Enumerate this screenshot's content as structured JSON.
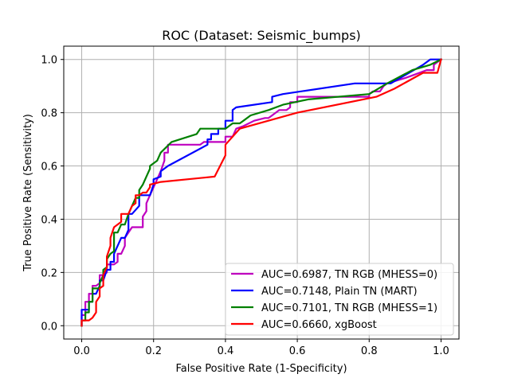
{
  "chart_data": {
    "type": "line",
    "title": "ROC (Dataset: Seismic_bumps)",
    "xlabel": "False Positive Rate (1-Specificity)",
    "ylabel": "True Positive Rate (Sensitivity)",
    "xlim": [
      -0.05,
      1.05
    ],
    "ylim": [
      -0.05,
      1.05
    ],
    "xticks": [
      "0.0",
      "0.2",
      "0.4",
      "0.6",
      "0.8",
      "1.0"
    ],
    "yticks": [
      "0.0",
      "0.2",
      "0.4",
      "0.6",
      "0.8",
      "1.0"
    ],
    "grid": true,
    "legend_position": "lower-right",
    "series": [
      {
        "name": "AUC=0.6987, TN RGB (MHESS=0)",
        "color": "#bf00bf",
        "x": [
          0,
          0,
          0.01,
          0.01,
          0.02,
          0.02,
          0.03,
          0.03,
          0.04,
          0.05,
          0.05,
          0.06,
          0.07,
          0.07,
          0.09,
          0.1,
          0.1,
          0.11,
          0.12,
          0.12,
          0.14,
          0.17,
          0.17,
          0.18,
          0.18,
          0.19,
          0.2,
          0.22,
          0.23,
          0.23,
          0.24,
          0.24,
          0.26,
          0.33,
          0.34,
          0.4,
          0.4,
          0.42,
          0.43,
          0.45,
          0.48,
          0.51,
          0.52,
          0.53,
          0.55,
          0.57,
          0.58,
          0.58,
          0.6,
          0.6,
          0.66,
          0.8,
          0.8,
          0.81,
          0.83,
          0.84,
          0.85,
          0.9,
          0.92,
          0.96,
          0.98,
          0.98,
          1.0
        ],
        "y": [
          0,
          0.04,
          0.04,
          0.09,
          0.09,
          0.12,
          0.12,
          0.15,
          0.15,
          0.16,
          0.19,
          0.19,
          0.2,
          0.23,
          0.23,
          0.24,
          0.27,
          0.27,
          0.3,
          0.33,
          0.37,
          0.37,
          0.41,
          0.43,
          0.46,
          0.49,
          0.52,
          0.58,
          0.62,
          0.65,
          0.65,
          0.68,
          0.68,
          0.68,
          0.69,
          0.69,
          0.71,
          0.71,
          0.74,
          0.75,
          0.77,
          0.78,
          0.78,
          0.79,
          0.81,
          0.81,
          0.82,
          0.84,
          0.84,
          0.86,
          0.86,
          0.86,
          0.87,
          0.88,
          0.88,
          0.9,
          0.91,
          0.93,
          0.94,
          0.96,
          0.96,
          0.98,
          1.0
        ]
      },
      {
        "name": "AUC=0.7148, Plain TN (MART)",
        "color": "#0000ff",
        "x": [
          0,
          0,
          0.02,
          0.02,
          0.03,
          0.03,
          0.04,
          0.05,
          0.05,
          0.06,
          0.07,
          0.08,
          0.08,
          0.09,
          0.09,
          0.1,
          0.11,
          0.12,
          0.13,
          0.13,
          0.14,
          0.16,
          0.16,
          0.19,
          0.2,
          0.2,
          0.22,
          0.22,
          0.24,
          0.35,
          0.35,
          0.36,
          0.36,
          0.38,
          0.38,
          0.4,
          0.4,
          0.42,
          0.42,
          0.43,
          0.53,
          0.53,
          0.56,
          0.76,
          0.81,
          0.86,
          0.95,
          0.97,
          0.99,
          1.0
        ],
        "y": [
          0,
          0.06,
          0.06,
          0.09,
          0.09,
          0.12,
          0.12,
          0.15,
          0.17,
          0.17,
          0.21,
          0.21,
          0.24,
          0.24,
          0.27,
          0.3,
          0.33,
          0.33,
          0.36,
          0.42,
          0.42,
          0.45,
          0.49,
          0.49,
          0.53,
          0.55,
          0.56,
          0.58,
          0.6,
          0.68,
          0.7,
          0.7,
          0.72,
          0.72,
          0.74,
          0.74,
          0.77,
          0.77,
          0.81,
          0.82,
          0.84,
          0.86,
          0.87,
          0.91,
          0.91,
          0.91,
          0.98,
          1.0,
          1.0,
          1.0
        ]
      },
      {
        "name": "AUC=0.7101, TN RGB (MHESS=1)",
        "color": "#008000",
        "x": [
          0,
          0,
          0.01,
          0.01,
          0.02,
          0.02,
          0.03,
          0.03,
          0.05,
          0.05,
          0.06,
          0.06,
          0.07,
          0.07,
          0.08,
          0.09,
          0.09,
          0.1,
          0.11,
          0.12,
          0.13,
          0.14,
          0.15,
          0.16,
          0.16,
          0.17,
          0.18,
          0.19,
          0.19,
          0.21,
          0.22,
          0.25,
          0.32,
          0.33,
          0.33,
          0.37,
          0.4,
          0.42,
          0.44,
          0.45,
          0.47,
          0.52,
          0.56,
          0.63,
          0.8,
          0.85,
          0.92,
          0.97,
          1.0
        ],
        "y": [
          0,
          0.02,
          0.02,
          0.05,
          0.05,
          0.09,
          0.09,
          0.14,
          0.14,
          0.16,
          0.19,
          0.21,
          0.22,
          0.25,
          0.27,
          0.28,
          0.35,
          0.35,
          0.38,
          0.38,
          0.42,
          0.45,
          0.48,
          0.48,
          0.51,
          0.53,
          0.56,
          0.59,
          0.6,
          0.62,
          0.65,
          0.69,
          0.72,
          0.74,
          0.74,
          0.74,
          0.74,
          0.76,
          0.76,
          0.77,
          0.79,
          0.81,
          0.83,
          0.85,
          0.87,
          0.91,
          0.96,
          0.98,
          1.0
        ]
      },
      {
        "name": "AUC=0.6660, xgBoost",
        "color": "#ff0000",
        "x": [
          0,
          0,
          0.02,
          0.03,
          0.04,
          0.04,
          0.05,
          0.05,
          0.06,
          0.06,
          0.07,
          0.07,
          0.08,
          0.08,
          0.09,
          0.1,
          0.11,
          0.11,
          0.13,
          0.14,
          0.15,
          0.15,
          0.16,
          0.17,
          0.18,
          0.19,
          0.19,
          0.22,
          0.37,
          0.4,
          0.4,
          0.44,
          0.6,
          0.82,
          0.87,
          0.95,
          0.99,
          1.0
        ],
        "y": [
          0,
          0.02,
          0.02,
          0.03,
          0.05,
          0.09,
          0.11,
          0.14,
          0.15,
          0.19,
          0.22,
          0.26,
          0.3,
          0.33,
          0.37,
          0.38,
          0.39,
          0.42,
          0.42,
          0.45,
          0.46,
          0.49,
          0.49,
          0.5,
          0.5,
          0.52,
          0.53,
          0.54,
          0.56,
          0.64,
          0.68,
          0.74,
          0.8,
          0.86,
          0.89,
          0.95,
          0.95,
          1.0
        ]
      }
    ]
  }
}
